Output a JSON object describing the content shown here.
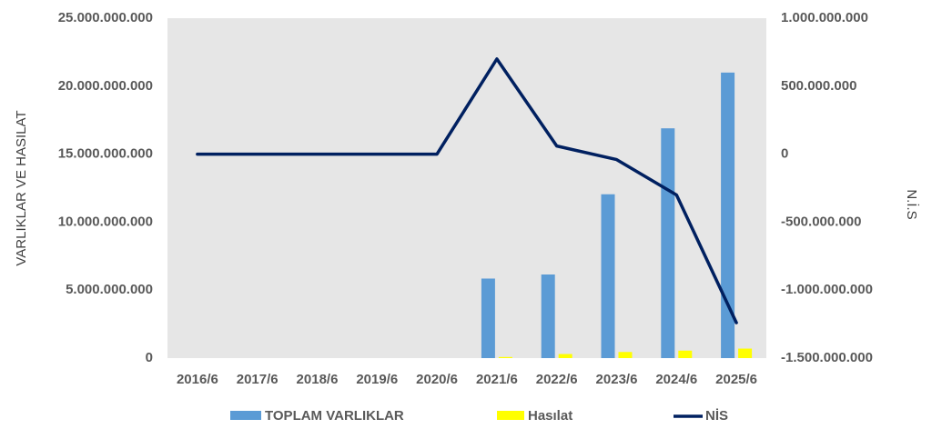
{
  "chart_data": {
    "type": "bar",
    "categories": [
      "2016/6",
      "2017/6",
      "2018/6",
      "2019/6",
      "2020/6",
      "2021/6",
      "2022/6",
      "2023/6",
      "2024/6",
      "2025/6"
    ],
    "series": [
      {
        "name": "TOPLAM VARLIKLAR",
        "type": "bar",
        "axis": "left",
        "color": "#5b9bd5",
        "values": [
          0,
          0,
          0,
          0,
          0,
          5850000000,
          6150000000,
          12050000000,
          16900000000,
          21000000000
        ]
      },
      {
        "name": "Hasılat",
        "type": "bar",
        "axis": "left",
        "color": "#ffff00",
        "values": [
          0,
          0,
          0,
          0,
          0,
          80000000,
          300000000,
          450000000,
          550000000,
          700000000
        ]
      },
      {
        "name": "NİS",
        "type": "line",
        "axis": "right",
        "color": "#002060",
        "values": [
          0,
          0,
          0,
          0,
          0,
          700000000,
          60000000,
          -40000000,
          -300000000,
          -1240000000
        ]
      }
    ],
    "y_left": {
      "label": "VARLIKLAR VE HASILAT",
      "ylim": [
        0,
        25000000000
      ],
      "ticks": [
        0,
        5000000000,
        10000000000,
        15000000000,
        20000000000,
        25000000000
      ],
      "tick_labels": [
        "0",
        "5.000.000.000",
        "10.000.000.000",
        "15.000.000.000",
        "20.000.000.000",
        "25.000.000.000"
      ]
    },
    "y_right": {
      "label": "N.İ.S",
      "ylim": [
        -1500000000,
        1000000000
      ],
      "ticks": [
        -1500000000,
        -1000000000,
        -500000000,
        0,
        500000000,
        1000000000
      ],
      "tick_labels": [
        "-1.500.000.000",
        "-1.000.000.000",
        "-500.000.000",
        "0",
        "500.000.000",
        "1.000.000.000"
      ]
    },
    "grid": false,
    "legend_position": "bottom",
    "plot_background": "#e6e6e6"
  }
}
